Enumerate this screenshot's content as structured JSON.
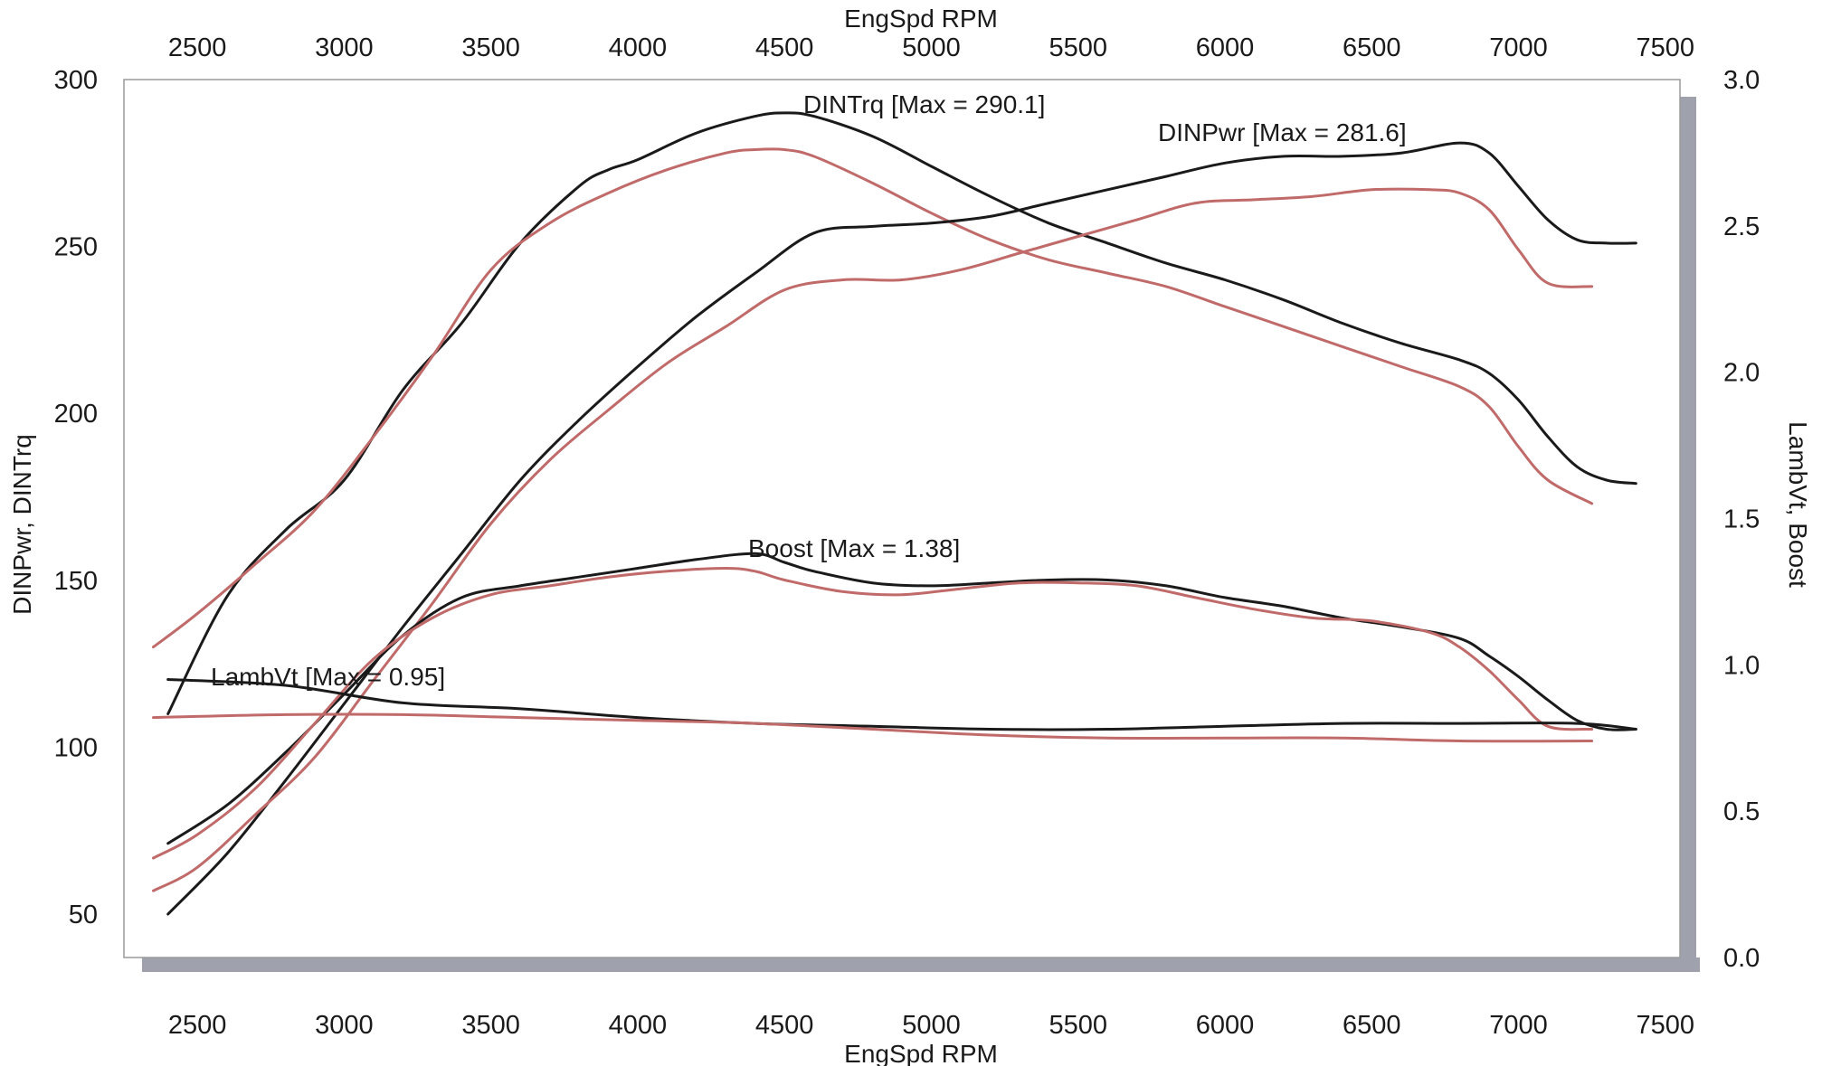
{
  "chart_data": {
    "type": "line",
    "xlabel": "EngSpd  RPM",
    "ylabel_left": "DINPwr, DINTrq",
    "ylabel_right": "LambVt, Boost",
    "xlim": [
      2250,
      7550
    ],
    "ylim_left": [
      37,
      300
    ],
    "ylim_right": [
      0.0,
      3.0
    ],
    "x_ticks": [
      "2500",
      "3000",
      "3500",
      "4000",
      "4500",
      "5000",
      "5500",
      "6000",
      "6500",
      "7000",
      "7500"
    ],
    "y_ticks_left": [
      "50",
      "100",
      "150",
      "200",
      "250",
      "300"
    ],
    "y_ticks_right": [
      "0.0",
      "0.5",
      "1.0",
      "1.5",
      "2.0",
      "2.5",
      "3.0"
    ],
    "grid": false,
    "colors": {
      "black_run": "#1a1a1a",
      "red_run": "#c06a6a",
      "shadow": "#9fa2ad"
    },
    "annotations": {
      "torque": "DINTrq [Max = 290.1]",
      "power": "DINPwr [Max = 281.6]",
      "boost": "Boost  [Max = 1.38]",
      "lambda": "LambVt [Max = 0.95]"
    },
    "series": [
      {
        "id": "trq_black",
        "axis": "left",
        "color": "#1a1a1a",
        "x": [
          2400,
          2600,
          2800,
          3000,
          3200,
          3400,
          3600,
          3800,
          3900,
          4000,
          4200,
          4400,
          4500,
          4600,
          4800,
          5000,
          5200,
          5400,
          5600,
          5800,
          6000,
          6200,
          6400,
          6600,
          6800,
          6900,
          7000,
          7100,
          7200,
          7300,
          7400
        ],
        "y": [
          110,
          145,
          165,
          180,
          207,
          227,
          251,
          268,
          273,
          276,
          284,
          289,
          290,
          289,
          283,
          274,
          265,
          257,
          251,
          245,
          240,
          234,
          227,
          221,
          216,
          212,
          204,
          193,
          184,
          180,
          179
        ]
      },
      {
        "id": "trq_red",
        "axis": "left",
        "color": "#c06a6a",
        "x": [
          2350,
          2500,
          2700,
          2900,
          3100,
          3300,
          3500,
          3700,
          3900,
          4100,
          4300,
          4400,
          4500,
          4600,
          4800,
          5000,
          5200,
          5400,
          5600,
          5800,
          6000,
          6200,
          6400,
          6600,
          6800,
          6900,
          7000,
          7100,
          7250
        ],
        "y": [
          130,
          140,
          155,
          171,
          193,
          217,
          243,
          257,
          266,
          273,
          278,
          279,
          279,
          277,
          269,
          260,
          252,
          246,
          242,
          238,
          232,
          226,
          220,
          214,
          208,
          202,
          190,
          180,
          173
        ]
      },
      {
        "id": "pwr_black",
        "axis": "left",
        "color": "#1a1a1a",
        "x": [
          2400,
          2600,
          2800,
          3000,
          3200,
          3400,
          3600,
          3800,
          4000,
          4200,
          4400,
          4600,
          4800,
          5000,
          5200,
          5400,
          5600,
          5800,
          6000,
          6200,
          6400,
          6600,
          6800,
          6900,
          7000,
          7100,
          7200,
          7300,
          7400
        ],
        "y": [
          50,
          68,
          90,
          113,
          136,
          158,
          180,
          198,
          214,
          229,
          242,
          254,
          256,
          257,
          259,
          263,
          267,
          271,
          275,
          277,
          277,
          278,
          281,
          278,
          268,
          258,
          252,
          251,
          251
        ]
      },
      {
        "id": "pwr_red",
        "axis": "left",
        "color": "#c06a6a",
        "x": [
          2350,
          2500,
          2700,
          2900,
          3100,
          3300,
          3500,
          3700,
          3900,
          4100,
          4300,
          4500,
          4700,
          4900,
          5100,
          5300,
          5500,
          5700,
          5900,
          6100,
          6300,
          6500,
          6700,
          6800,
          6900,
          7000,
          7100,
          7250
        ],
        "y": [
          57,
          64,
          80,
          97,
          120,
          143,
          167,
          186,
          201,
          215,
          226,
          237,
          240,
          240,
          243,
          248,
          253,
          258,
          263,
          264,
          265,
          267,
          267,
          266,
          261,
          249,
          239,
          238
        ]
      },
      {
        "id": "boost_black",
        "axis": "right",
        "color": "#1a1a1a",
        "x": [
          2400,
          2600,
          2800,
          3000,
          3200,
          3400,
          3600,
          3800,
          4000,
          4200,
          4400,
          4500,
          4600,
          4800,
          5000,
          5200,
          5400,
          5600,
          5800,
          6000,
          6200,
          6400,
          6600,
          6800,
          6900,
          7000,
          7100,
          7200,
          7300,
          7400
        ],
        "y": [
          0.39,
          0.52,
          0.7,
          0.9,
          1.1,
          1.23,
          1.27,
          1.3,
          1.33,
          1.36,
          1.38,
          1.35,
          1.32,
          1.28,
          1.27,
          1.28,
          1.29,
          1.29,
          1.27,
          1.23,
          1.2,
          1.16,
          1.13,
          1.09,
          1.03,
          0.96,
          0.88,
          0.81,
          0.78,
          0.78
        ]
      },
      {
        "id": "boost_red",
        "axis": "right",
        "color": "#c06a6a",
        "x": [
          2350,
          2500,
          2700,
          2900,
          3100,
          3300,
          3500,
          3700,
          3900,
          4100,
          4300,
          4400,
          4500,
          4700,
          4900,
          5100,
          5300,
          5500,
          5700,
          5900,
          6100,
          6300,
          6500,
          6700,
          6800,
          6900,
          7000,
          7100,
          7250
        ],
        "y": [
          0.34,
          0.42,
          0.58,
          0.8,
          1.02,
          1.16,
          1.24,
          1.27,
          1.3,
          1.32,
          1.33,
          1.32,
          1.29,
          1.25,
          1.24,
          1.26,
          1.28,
          1.28,
          1.27,
          1.23,
          1.19,
          1.16,
          1.15,
          1.11,
          1.06,
          0.98,
          0.88,
          0.79,
          0.78
        ]
      },
      {
        "id": "lambda_black",
        "axis": "right",
        "color": "#1a1a1a",
        "x": [
          2400,
          2800,
          3200,
          3600,
          4000,
          4400,
          4800,
          5200,
          5600,
          6000,
          6400,
          6800,
          7200,
          7400
        ],
        "y": [
          0.95,
          0.93,
          0.87,
          0.85,
          0.82,
          0.8,
          0.79,
          0.78,
          0.78,
          0.79,
          0.8,
          0.8,
          0.8,
          0.78
        ]
      },
      {
        "id": "lambda_red",
        "axis": "right",
        "color": "#c06a6a",
        "x": [
          2350,
          2800,
          3200,
          3600,
          4000,
          4400,
          4800,
          5200,
          5600,
          6000,
          6400,
          6800,
          7250
        ],
        "y": [
          0.82,
          0.83,
          0.83,
          0.82,
          0.81,
          0.8,
          0.78,
          0.76,
          0.75,
          0.75,
          0.75,
          0.74,
          0.74
        ]
      }
    ]
  }
}
